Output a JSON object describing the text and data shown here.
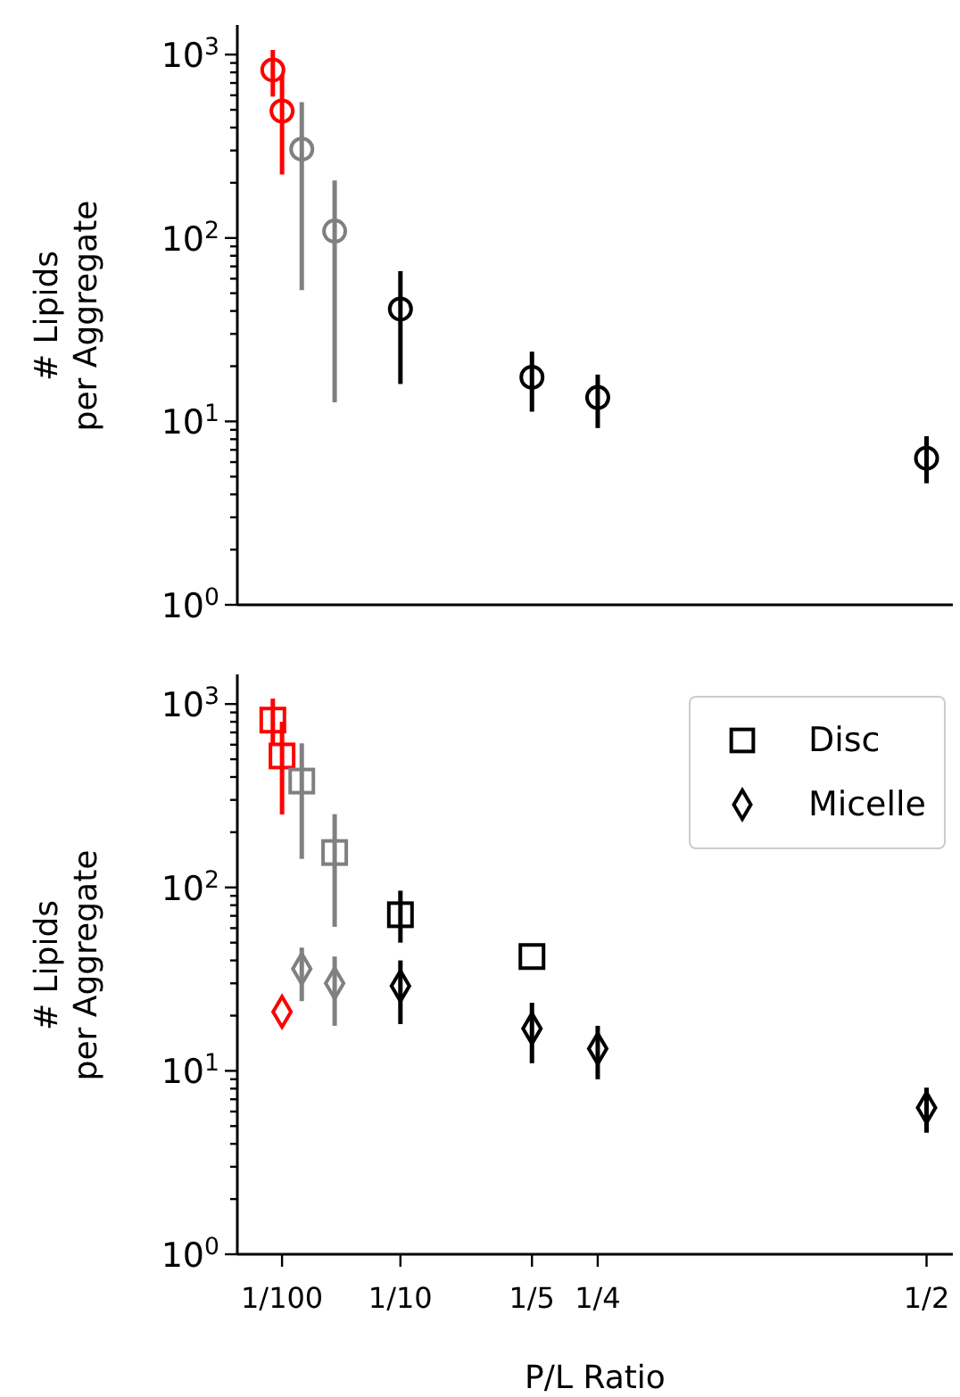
{
  "chart_data": [
    {
      "type": "scatter",
      "ylabel": "# Lipids\nper Aggregate",
      "xlim": [
        -0.024,
        0.52
      ],
      "ylim": [
        1,
        1450
      ],
      "log": "y",
      "grid": false,
      "legend": false,
      "tick_labels": "y",
      "yticks": [
        {
          "value": 1,
          "label": "10$^{0}$"
        },
        {
          "value": 2,
          "label": null
        },
        {
          "value": 3,
          "label": null
        },
        {
          "value": 4,
          "label": null
        },
        {
          "value": 5,
          "label": null
        },
        {
          "value": 6,
          "label": null
        },
        {
          "value": 7,
          "label": null
        },
        {
          "value": 8,
          "label": null
        },
        {
          "value": 9,
          "label": null
        },
        {
          "value": 10,
          "label": "10$^{1}$"
        },
        {
          "value": 20,
          "label": null
        },
        {
          "value": 30,
          "label": null
        },
        {
          "value": 40,
          "label": null
        },
        {
          "value": 50,
          "label": null
        },
        {
          "value": 60,
          "label": null
        },
        {
          "value": 70,
          "label": null
        },
        {
          "value": 80,
          "label": null
        },
        {
          "value": 90,
          "label": null
        },
        {
          "value": 100,
          "label": "10$^{2}$"
        },
        {
          "value": 200,
          "label": null
        },
        {
          "value": 300,
          "label": null
        },
        {
          "value": 400,
          "label": null
        },
        {
          "value": 500,
          "label": null
        },
        {
          "value": 600,
          "label": null
        },
        {
          "value": 700,
          "label": null
        },
        {
          "value": 800,
          "label": null
        },
        {
          "value": 900,
          "label": null
        },
        {
          "value": 1000,
          "label": "10$^{3}$"
        }
      ],
      "series": [
        {
          "marker": "circle",
          "x": [
            0.003,
            0.01,
            0.025,
            0.05,
            0.1,
            0.2,
            0.25,
            0.5
          ],
          "values": [
            824,
            492,
            305,
            109,
            41,
            17.4,
            13.5,
            6.3
          ],
          "errors": [
            [
              590,
              1060
            ],
            [
              222,
              770
            ],
            [
              52,
              550
            ],
            [
              12.7,
              206
            ],
            [
              16,
              66
            ],
            [
              11.3,
              24
            ],
            [
              9.2,
              18
            ],
            [
              4.6,
              8.3
            ]
          ],
          "colors": [
            "#ff0000",
            "#ff0000",
            "#808080",
            "#808080",
            "#000000",
            "#000000",
            "#000000",
            "#000000"
          ]
        }
      ]
    },
    {
      "type": "scatter",
      "ylabel": "# Lipids\nper Aggregate",
      "xlabel": "P/L Ratio",
      "xlim": [
        -0.024,
        0.52
      ],
      "ylim": [
        1,
        1450
      ],
      "log": "y",
      "grid": false,
      "legend": "top right",
      "xticks": [
        {
          "value": 0.01,
          "label": "1/100"
        },
        {
          "value": 0.1,
          "label": "1/10"
        },
        {
          "value": 0.2,
          "label": "1/5"
        },
        {
          "value": 0.25,
          "label": "1/4"
        },
        {
          "value": 0.5,
          "label": "1/2"
        }
      ],
      "yticks": [
        {
          "value": 1,
          "label": "10$^{0}$"
        },
        {
          "value": 2,
          "label": null
        },
        {
          "value": 3,
          "label": null
        },
        {
          "value": 4,
          "label": null
        },
        {
          "value": 5,
          "label": null
        },
        {
          "value": 6,
          "label": null
        },
        {
          "value": 7,
          "label": null
        },
        {
          "value": 8,
          "label": null
        },
        {
          "value": 9,
          "label": null
        },
        {
          "value": 10,
          "label": "10$^{1}$"
        },
        {
          "value": 20,
          "label": null
        },
        {
          "value": 30,
          "label": null
        },
        {
          "value": 40,
          "label": null
        },
        {
          "value": 50,
          "label": null
        },
        {
          "value": 60,
          "label": null
        },
        {
          "value": 70,
          "label": null
        },
        {
          "value": 80,
          "label": null
        },
        {
          "value": 90,
          "label": null
        },
        {
          "value": 100,
          "label": "10$^{2}$"
        },
        {
          "value": 200,
          "label": null
        },
        {
          "value": 300,
          "label": null
        },
        {
          "value": 400,
          "label": null
        },
        {
          "value": 500,
          "label": null
        },
        {
          "value": 600,
          "label": null
        },
        {
          "value": 700,
          "label": null
        },
        {
          "value": 800,
          "label": null
        },
        {
          "value": 900,
          "label": null
        },
        {
          "value": 1000,
          "label": "10$^{3}$"
        }
      ],
      "series": [
        {
          "name": "Disc",
          "color": "#000000",
          "marker": "square",
          "x": [
            0.003,
            0.01,
            0.025,
            0.05,
            0.1,
            0.2
          ],
          "values": [
            817,
            521,
            380,
            155,
            71,
            42
          ],
          "errors": [
            [
              600,
              1070
            ],
            [
              250,
              800
            ],
            [
              143,
              610
            ],
            [
              61,
              251
            ],
            [
              50,
              96
            ],
            null
          ],
          "colors": [
            "#ff0000",
            "#ff0000",
            "#808080",
            "#808080",
            "#000000",
            "#000000"
          ]
        },
        {
          "name": "Micelle",
          "color": "#000000",
          "marker": "diamond",
          "x": [
            0.01,
            0.025,
            0.05,
            0.1,
            0.2,
            0.25,
            0.5
          ],
          "values": [
            21,
            36,
            30,
            29,
            17,
            13.2,
            6.3
          ],
          "errors": [
            null,
            [
              24,
              47
            ],
            [
              17.6,
              42
            ],
            [
              18,
              40
            ],
            [
              11,
              23.5
            ],
            [
              9,
              17.6
            ],
            [
              4.6,
              8.1
            ]
          ],
          "colors": [
            "#ff0000",
            "#808080",
            "#808080",
            "#000000",
            "#000000",
            "#000000",
            "#000000"
          ]
        }
      ]
    }
  ]
}
